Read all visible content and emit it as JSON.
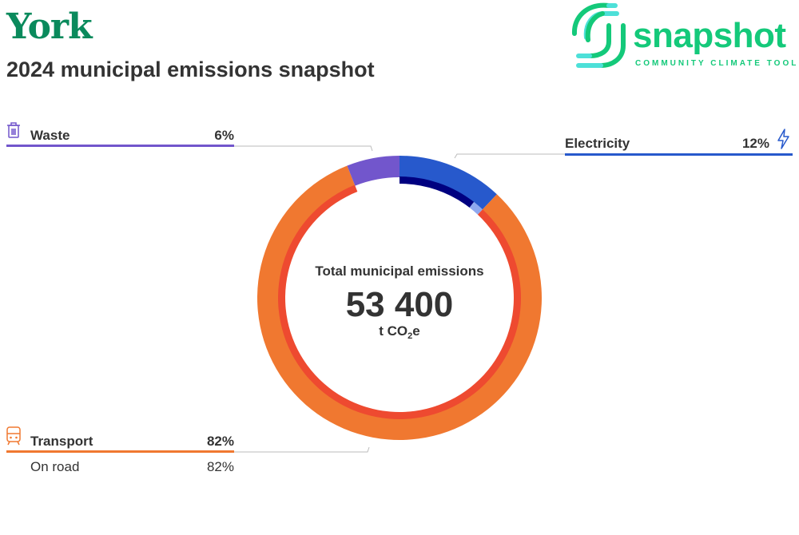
{
  "header": {
    "city": "York",
    "subtitle": "2024 municipal emissions snapshot"
  },
  "logo": {
    "word": "snapshot",
    "tagline": "COMMUNITY CLIMATE TOOL"
  },
  "center": {
    "label": "Total municipal emissions",
    "value": "53 400",
    "unit_prefix": "t CO",
    "unit_sub": "2",
    "unit_suffix": "e"
  },
  "chart_data": {
    "type": "pie",
    "title": "Total municipal emissions",
    "total": 53400,
    "unit": "t CO2e",
    "categories": [
      {
        "name": "Electricity",
        "percent": 12,
        "color": "#2759cc",
        "pct_label": "12%",
        "sub": [
          {
            "color": "#000080",
            "percent": 10.5
          },
          {
            "color": "#8fa8ee",
            "percent": 1.5
          }
        ]
      },
      {
        "name": "Transport",
        "percent": 82,
        "color": "#f07830",
        "pct_label": "82%",
        "sub": [
          {
            "name": "On road",
            "percent": 82,
            "pct_label": "82%",
            "color": "#ee4a30"
          }
        ]
      },
      {
        "name": "Waste",
        "percent": 6,
        "color": "#7256cc",
        "pct_label": "6%",
        "sub": []
      }
    ]
  }
}
